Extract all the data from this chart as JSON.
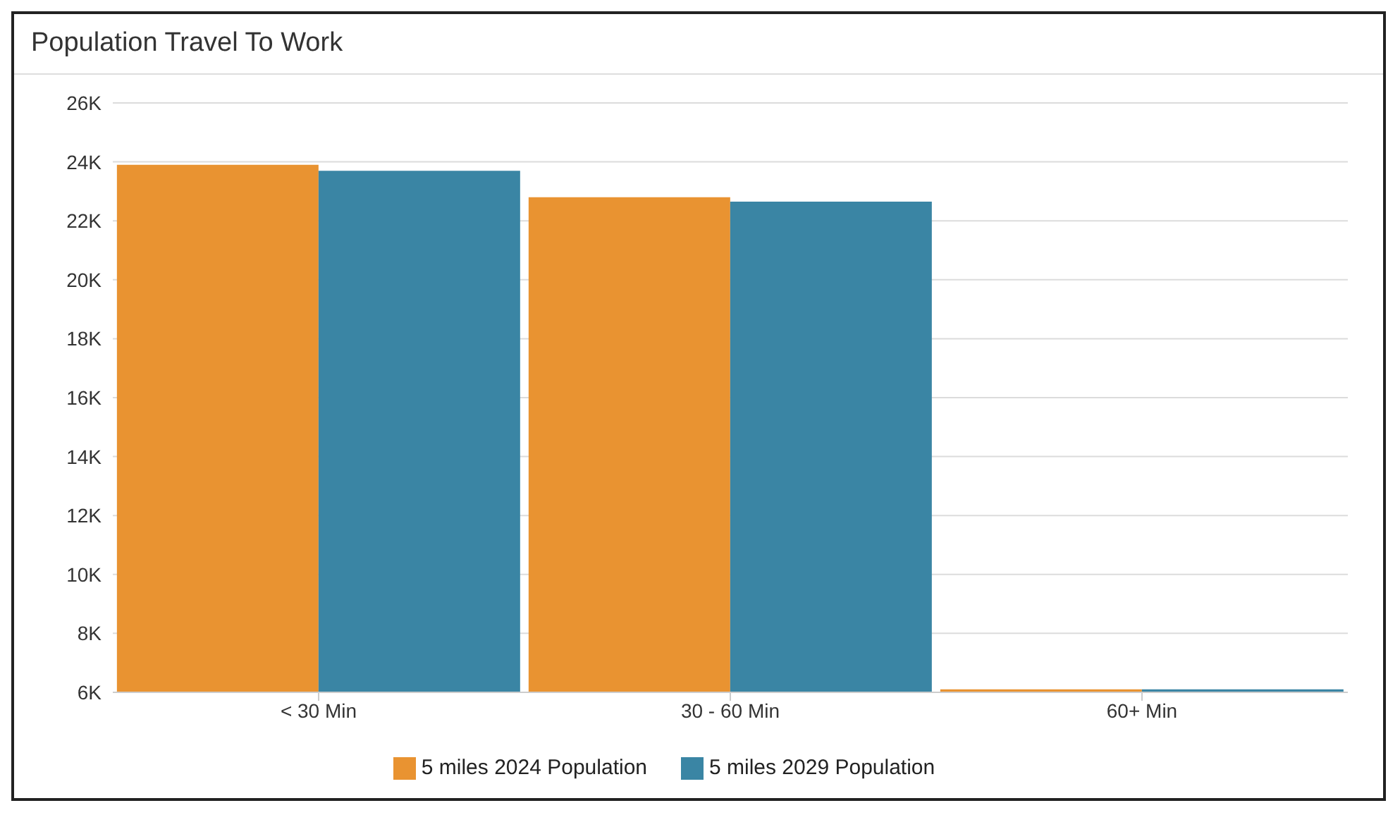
{
  "chart_data": {
    "type": "bar",
    "title": "Population Travel To Work",
    "categories": [
      "< 30 Min",
      "30 - 60 Min",
      "60+ Min"
    ],
    "series": [
      {
        "name": "5 miles 2024 Population",
        "color": "#e99331",
        "values": [
          23900,
          22800,
          6100
        ]
      },
      {
        "name": "5 miles 2029 Population",
        "color": "#3a85a4",
        "values": [
          23700,
          22650,
          6100
        ]
      }
    ],
    "ylim": [
      6000,
      26000
    ],
    "yticks": [
      {
        "value": 6000,
        "label": "6K"
      },
      {
        "value": 8000,
        "label": "8K"
      },
      {
        "value": 10000,
        "label": "10K"
      },
      {
        "value": 12000,
        "label": "12K"
      },
      {
        "value": 14000,
        "label": "14K"
      },
      {
        "value": 16000,
        "label": "16K"
      },
      {
        "value": 18000,
        "label": "18K"
      },
      {
        "value": 20000,
        "label": "20K"
      },
      {
        "value": 22000,
        "label": "22K"
      },
      {
        "value": 24000,
        "label": "24K"
      },
      {
        "value": 26000,
        "label": "26K"
      }
    ],
    "grid": "y",
    "legend": "bottom"
  }
}
